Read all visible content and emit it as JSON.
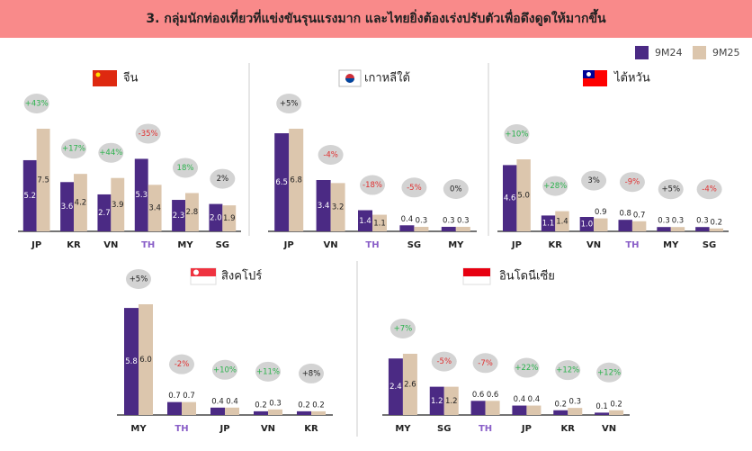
{
  "header": {
    "title": "3. กลุ่มนักท่องเที่ยวที่แข่งขันรุนแรงมาก  และไทยยิ่งต้องเร่งปรับตัวเพื่อดึงดูดให้มากขึ้น"
  },
  "legend": {
    "items": [
      {
        "name": "9M24",
        "color": "#4b2a84"
      },
      {
        "name": "9M25",
        "color": "#dcc6ad"
      }
    ]
  },
  "chart_data": [
    {
      "type": "bar",
      "title": "จีน",
      "categories": [
        "JP",
        "KR",
        "VN",
        "TH",
        "MY",
        "SG"
      ],
      "category_colors": [
        "#222",
        "#222",
        "#222",
        "#8a5fc8",
        "#222",
        "#222"
      ],
      "series": [
        {
          "values": [
            5.2,
            3.6,
            2.7,
            5.3,
            2.3,
            2.0
          ],
          "value_labels": [
            "5.2",
            "3.6",
            "2.7",
            "5.3",
            "2.3",
            "2.0"
          ]
        },
        {
          "values": [
            7.5,
            4.2,
            3.9,
            3.4,
            2.8,
            1.9
          ],
          "value_labels": [
            "7.5",
            "4.2",
            "3.9",
            "3.4",
            "2.8",
            "1.9"
          ]
        }
      ],
      "change_labels": [
        "+43%",
        "+17%",
        "+44%",
        "-35%",
        "18%",
        "2%"
      ],
      "change_colors": [
        "#2bb24c",
        "#2bb24c",
        "#2bb24c",
        "#e03030",
        "#2bb24c",
        "#222"
      ]
    },
    {
      "type": "bar",
      "title": "เกาหลีใต้",
      "categories": [
        "JP",
        "VN",
        "TH",
        "SG",
        "MY"
      ],
      "category_colors": [
        "#222",
        "#222",
        "#8a5fc8",
        "#222",
        "#222"
      ],
      "series": [
        {
          "values": [
            6.5,
            3.4,
            1.4,
            0.4,
            0.3
          ],
          "value_labels": [
            "6.5",
            "3.4",
            "1.4",
            "0.4",
            "0.3"
          ]
        },
        {
          "values": [
            6.8,
            3.2,
            1.1,
            0.3,
            0.3
          ],
          "value_labels": [
            "6.8",
            "3.2",
            "1.1",
            "0.3",
            "0.3"
          ]
        }
      ],
      "change_labels": [
        "+5%",
        "-4%",
        "-18%",
        "-5%",
        "0%"
      ],
      "change_colors": [
        "#222",
        "#e03030",
        "#e03030",
        "#e03030",
        "#222"
      ]
    },
    {
      "type": "bar",
      "title": "ไต้หวัน",
      "categories": [
        "JP",
        "KR",
        "VN",
        "TH",
        "MY",
        "SG"
      ],
      "category_colors": [
        "#222",
        "#222",
        "#222",
        "#8a5fc8",
        "#222",
        "#222"
      ],
      "series": [
        {
          "values": [
            4.6,
            1.1,
            1.0,
            0.8,
            0.3,
            0.3
          ],
          "value_labels": [
            "4.6",
            "1.1",
            "1.0",
            "0.8",
            "0.3",
            "0.3"
          ]
        },
        {
          "values": [
            5.0,
            1.4,
            0.9,
            0.7,
            0.3,
            0.2
          ],
          "value_labels": [
            "5.0",
            "1.4",
            "0.9",
            "0.7",
            "0.3",
            "0.2"
          ]
        }
      ],
      "change_labels": [
        "+10%",
        "+28%",
        "3%",
        "-9%",
        "+5%",
        "-4%"
      ],
      "change_colors": [
        "#2bb24c",
        "#2bb24c",
        "#222",
        "#e03030",
        "#222",
        "#e03030"
      ]
    },
    {
      "type": "bar",
      "title": "สิงคโปร์",
      "categories": [
        "MY",
        "TH",
        "JP",
        "VN",
        "KR"
      ],
      "category_colors": [
        "#222",
        "#8a5fc8",
        "#222",
        "#222",
        "#222"
      ],
      "series": [
        {
          "values": [
            5.8,
            0.7,
            0.4,
            0.2,
            0.2
          ],
          "value_labels": [
            "5.8",
            "0.7",
            "0.4",
            "0.2",
            "0.2"
          ]
        },
        {
          "values": [
            6.0,
            0.7,
            0.4,
            0.3,
            0.2
          ],
          "value_labels": [
            "6.0",
            "0.7",
            "0.4",
            "0.3",
            "0.2"
          ]
        }
      ],
      "change_labels": [
        "+5%",
        "-2%",
        "+10%",
        "+11%",
        "+8%"
      ],
      "change_colors": [
        "#222",
        "#e03030",
        "#2bb24c",
        "#2bb24c",
        "#222"
      ]
    },
    {
      "type": "bar",
      "title": "อินโดนีเซีย",
      "categories": [
        "MY",
        "SG",
        "TH",
        "JP",
        "KR",
        "VN"
      ],
      "category_colors": [
        "#222",
        "#222",
        "#8a5fc8",
        "#222",
        "#222",
        "#222"
      ],
      "series": [
        {
          "values": [
            2.4,
            1.2,
            0.6,
            0.4,
            0.2,
            0.1
          ],
          "value_labels": [
            "2.4",
            "1.2",
            "0.6",
            "0.4",
            "0.2",
            "0.1"
          ]
        },
        {
          "values": [
            2.6,
            1.2,
            0.6,
            0.4,
            0.3,
            0.2
          ],
          "value_labels": [
            "2.6",
            "1.2",
            "0.6",
            "0.4",
            "0.3",
            "0.2"
          ]
        }
      ],
      "change_labels": [
        "+7%",
        "-5%",
        "-7%",
        "+22%",
        "+12%",
        "+12%"
      ],
      "change_colors": [
        "#2bb24c",
        "#e03030",
        "#e03030",
        "#2bb24c",
        "#2bb24c",
        "#2bb24c"
      ]
    }
  ]
}
